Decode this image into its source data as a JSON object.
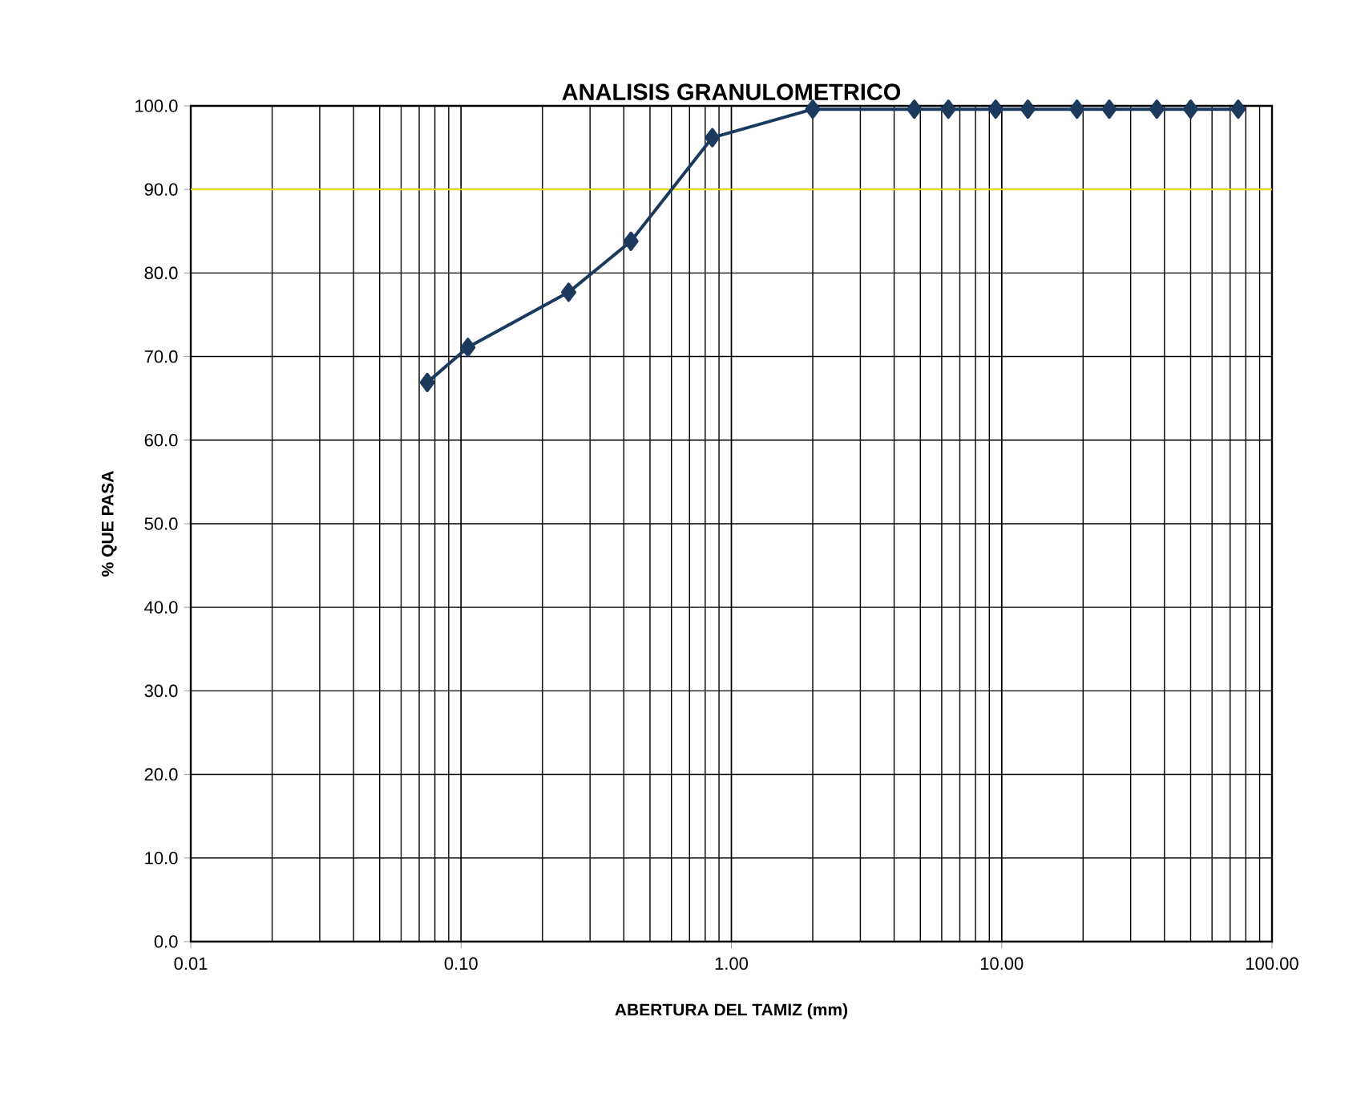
{
  "chart_data": {
    "type": "line",
    "title": "ANALISIS GRANULOMETRICO",
    "xlabel": "ABERTURA DEL TAMIZ (mm)",
    "ylabel": "% QUE PASA",
    "log": "x",
    "x": [
      0.075,
      0.106,
      0.25,
      0.425,
      0.85,
      2.0,
      4.75,
      6.35,
      9.5,
      12.5,
      19.0,
      25.0,
      37.5,
      50.0,
      75.0
    ],
    "series": [
      {
        "color": "#1b3a5e",
        "values": [
          66.9,
          71.1,
          77.7,
          83.8,
          96.2,
          99.6,
          99.6,
          99.6,
          99.6,
          99.6,
          99.6,
          99.6,
          99.6,
          99.6,
          99.6
        ]
      }
    ],
    "xlim": [
      0.01,
      100
    ],
    "xticks": [
      {
        "value": 0.01,
        "label": "0.01"
      },
      {
        "value": 0.1,
        "label": "0.10"
      },
      {
        "value": 1,
        "label": "1.00"
      },
      {
        "value": 10,
        "label": "10.00"
      },
      {
        "value": 100,
        "label": "100.00"
      }
    ],
    "ylim": [
      0,
      100
    ],
    "yticks": [
      {
        "value": 0,
        "label": "0.0"
      },
      {
        "value": 10,
        "label": "10.0"
      },
      {
        "value": 20,
        "label": "20.0"
      },
      {
        "value": 30,
        "label": "30.0"
      },
      {
        "value": 40,
        "label": "40.0"
      },
      {
        "value": 50,
        "label": "50.0"
      },
      {
        "value": 60,
        "label": "60.0"
      },
      {
        "value": 70,
        "label": "70.0"
      },
      {
        "value": 80,
        "label": "80.0"
      },
      {
        "value": 90,
        "label": "90.0"
      },
      {
        "value": 100,
        "label": "100.0"
      }
    ],
    "ref_lines": [
      {
        "axis": "y",
        "value": 90,
        "color": "#f0e000"
      }
    ],
    "grid": true,
    "marker": "diamond",
    "line_style": "solid"
  }
}
